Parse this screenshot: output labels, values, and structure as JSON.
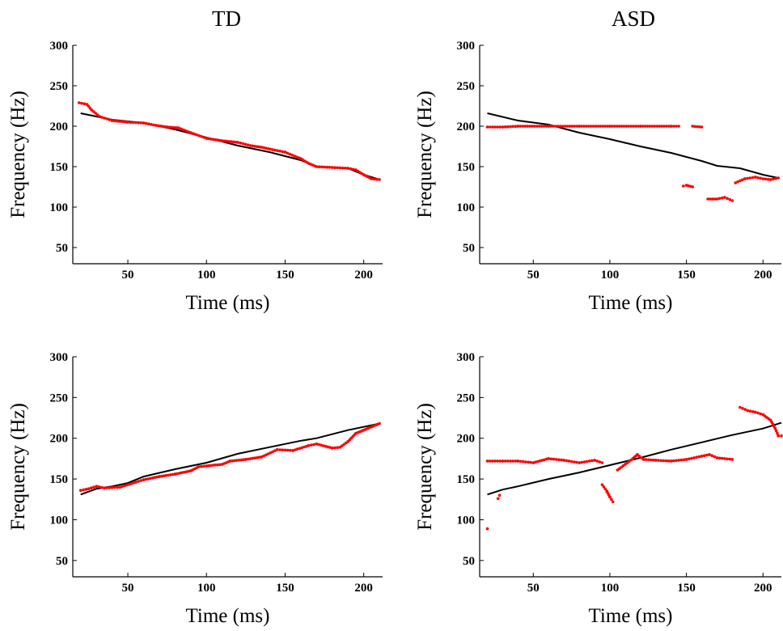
{
  "columns": {
    "left_title": "TD",
    "right_title": "ASD"
  },
  "colors": {
    "reference": "#000000",
    "produced": "#ff0000"
  },
  "chart_data": [
    {
      "type": "line",
      "column": "TD",
      "xlabel": "Time (ms)",
      "ylabel": "Frequency (Hz)",
      "xlim": [
        15,
        212
      ],
      "ylim": [
        30,
        300
      ],
      "xticks": [
        50,
        100,
        150,
        200
      ],
      "yticks": [
        50,
        100,
        150,
        200,
        250,
        300
      ],
      "series": [
        {
          "color": "#000000",
          "style": "line",
          "points": [
            [
              20,
              216
            ],
            [
              40,
              208
            ],
            [
              60,
              204
            ],
            [
              80,
              196
            ],
            [
              100,
              186
            ],
            [
              120,
              176
            ],
            [
              140,
              168
            ],
            [
              160,
              158
            ],
            [
              170,
              150
            ],
            [
              190,
              148
            ],
            [
              200,
              140
            ],
            [
              210,
              134
            ]
          ]
        },
        {
          "color": "#ff0000",
          "style": "dots",
          "points": [
            [
              19,
              229
            ],
            [
              24,
              227
            ],
            [
              27,
              220
            ],
            [
              32,
              212
            ],
            [
              40,
              207
            ],
            [
              50,
              205
            ],
            [
              60,
              204
            ],
            [
              68,
              201
            ],
            [
              75,
              199
            ],
            [
              82,
              198
            ],
            [
              90,
              192
            ],
            [
              100,
              185
            ],
            [
              110,
              182
            ],
            [
              120,
              180
            ],
            [
              128,
              176
            ],
            [
              135,
              174
            ],
            [
              142,
              171
            ],
            [
              150,
              168
            ],
            [
              156,
              163
            ],
            [
              160,
              160
            ],
            [
              165,
              154
            ],
            [
              170,
              150
            ],
            [
              180,
              149
            ],
            [
              190,
              148
            ],
            [
              195,
              146
            ],
            [
              200,
              140
            ],
            [
              205,
              135
            ],
            [
              210,
              134
            ]
          ]
        }
      ]
    },
    {
      "type": "line",
      "column": "ASD",
      "xlabel": "Time (ms)",
      "ylabel": "Frequency (Hz)",
      "xlim": [
        15,
        212
      ],
      "ylim": [
        30,
        300
      ],
      "xticks": [
        50,
        100,
        150,
        200
      ],
      "yticks": [
        50,
        100,
        150,
        200,
        250,
        300
      ],
      "series": [
        {
          "color": "#000000",
          "style": "line",
          "points": [
            [
              20,
              216
            ],
            [
              40,
              207
            ],
            [
              60,
              202
            ],
            [
              80,
              192
            ],
            [
              100,
              184
            ],
            [
              120,
              175
            ],
            [
              140,
              167
            ],
            [
              160,
              157
            ],
            [
              170,
              151
            ],
            [
              185,
              148
            ],
            [
              200,
              140
            ],
            [
              210,
              136
            ]
          ]
        },
        {
          "color": "#ff0000",
          "style": "dots",
          "points": [
            [
              20,
              199
            ],
            [
              30,
              199
            ],
            [
              40,
              200
            ],
            [
              60,
              200
            ],
            [
              80,
              200
            ],
            [
              100,
              200
            ],
            [
              120,
              200
            ],
            [
              140,
              200
            ],
            [
              145,
              200
            ]
          ]
        },
        {
          "color": "#ff0000",
          "style": "dots",
          "points": [
            [
              154,
              200
            ],
            [
              160,
              199
            ]
          ]
        },
        {
          "color": "#ff0000",
          "style": "dots",
          "points": [
            [
              148,
              126
            ],
            [
              150,
              127
            ],
            [
              154,
              125
            ]
          ]
        },
        {
          "color": "#ff0000",
          "style": "dots",
          "points": [
            [
              164,
              110
            ],
            [
              170,
              110
            ],
            [
              175,
              112
            ],
            [
              180,
              108
            ]
          ]
        },
        {
          "color": "#ff0000",
          "style": "dots",
          "points": [
            [
              182,
              130
            ],
            [
              188,
              135
            ],
            [
              195,
              137
            ],
            [
              200,
              135
            ],
            [
              205,
              134
            ],
            [
              210,
              136
            ]
          ]
        }
      ]
    },
    {
      "type": "line",
      "column": "TD",
      "xlabel": "Time (ms)",
      "ylabel": "Frequency (Hz)",
      "xlim": [
        15,
        212
      ],
      "ylim": [
        30,
        300
      ],
      "xticks": [
        50,
        100,
        150,
        200
      ],
      "yticks": [
        50,
        100,
        150,
        200,
        250,
        300
      ],
      "series": [
        {
          "color": "#000000",
          "style": "line",
          "points": [
            [
              20,
              131
            ],
            [
              30,
              138
            ],
            [
              40,
              141
            ],
            [
              50,
              145
            ],
            [
              60,
              153
            ],
            [
              80,
              162
            ],
            [
              100,
              170
            ],
            [
              120,
              181
            ],
            [
              140,
              189
            ],
            [
              160,
              197
            ],
            [
              170,
              200
            ],
            [
              190,
              210
            ],
            [
              210,
              218
            ]
          ]
        },
        {
          "color": "#ff0000",
          "style": "dots",
          "points": [
            [
              20,
              136
            ],
            [
              25,
              138
            ],
            [
              30,
              141
            ],
            [
              35,
              139
            ],
            [
              45,
              140
            ],
            [
              55,
              146
            ],
            [
              60,
              149
            ],
            [
              70,
              153
            ],
            [
              80,
              156
            ],
            [
              90,
              160
            ],
            [
              95,
              165
            ],
            [
              100,
              166
            ],
            [
              110,
              168
            ],
            [
              115,
              172
            ],
            [
              125,
              174
            ],
            [
              135,
              177
            ],
            [
              145,
              186
            ],
            [
              155,
              185
            ],
            [
              165,
              191
            ],
            [
              170,
              193
            ],
            [
              180,
              188
            ],
            [
              185,
              189
            ],
            [
              190,
              196
            ],
            [
              195,
              206
            ],
            [
              200,
              210
            ],
            [
              205,
              214
            ],
            [
              210,
              218
            ]
          ]
        }
      ]
    },
    {
      "type": "line",
      "column": "ASD",
      "xlabel": "Time (ms)",
      "ylabel": "Frequency (Hz)",
      "xlim": [
        15,
        212
      ],
      "ylim": [
        30,
        300
      ],
      "xticks": [
        50,
        100,
        150,
        200
      ],
      "yticks": [
        50,
        100,
        150,
        200,
        250,
        300
      ],
      "series": [
        {
          "color": "#000000",
          "style": "line",
          "points": [
            [
              20,
              131
            ],
            [
              30,
              137
            ],
            [
              40,
              141
            ],
            [
              60,
              150
            ],
            [
              80,
              158
            ],
            [
              100,
              167
            ],
            [
              120,
              176
            ],
            [
              140,
              186
            ],
            [
              160,
              195
            ],
            [
              180,
              204
            ],
            [
              200,
              212
            ],
            [
              212,
              219
            ]
          ]
        },
        {
          "color": "#ff0000",
          "style": "dots",
          "points": [
            [
              20,
              172
            ],
            [
              30,
              172
            ],
            [
              40,
              172
            ],
            [
              50,
              170
            ],
            [
              60,
              175
            ],
            [
              70,
              173
            ],
            [
              80,
              170
            ],
            [
              90,
              173
            ],
            [
              95,
              170
            ]
          ]
        },
        {
          "color": "#ff0000",
          "style": "dots",
          "points": [
            [
              95,
              143
            ],
            [
              98,
              135
            ],
            [
              100,
              128
            ],
            [
              102,
              122
            ]
          ]
        },
        {
          "color": "#ff0000",
          "style": "dots",
          "points": [
            [
              105,
              161
            ],
            [
              110,
              168
            ],
            [
              115,
              175
            ],
            [
              118,
              180
            ],
            [
              122,
              174
            ],
            [
              130,
              173
            ],
            [
              140,
              172
            ],
            [
              150,
              174
            ],
            [
              160,
              178
            ],
            [
              165,
              180
            ],
            [
              170,
              176
            ],
            [
              180,
              174
            ]
          ]
        },
        {
          "color": "#ff0000",
          "style": "dots",
          "points": [
            [
              185,
              238
            ],
            [
              190,
              234
            ],
            [
              195,
              232
            ],
            [
              200,
              229
            ],
            [
              205,
              222
            ],
            [
              208,
              212
            ],
            [
              210,
              203
            ],
            [
              212,
              203
            ]
          ]
        },
        {
          "color": "#ff0000",
          "style": "dots",
          "points": [
            [
              20,
              89
            ]
          ]
        },
        {
          "color": "#ff0000",
          "style": "dots",
          "points": [
            [
              27,
              126
            ],
            [
              28,
              130
            ]
          ]
        }
      ]
    }
  ]
}
